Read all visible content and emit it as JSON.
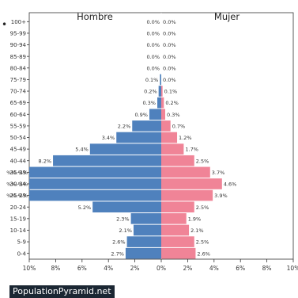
{
  "watermark": "PopulationPyramid.net",
  "bullet": "•",
  "chart_data": {
    "type": "bar",
    "orientation": "horizontal-pyramid",
    "categories": [
      "100+",
      "95-99",
      "90-94",
      "85-89",
      "80-84",
      "75-79",
      "70-74",
      "65-69",
      "60-64",
      "55-59",
      "50-54",
      "45-49",
      "40-44",
      "35-39",
      "30-34",
      "25-29",
      "20-24",
      "15-19",
      "10-14",
      "5-9",
      "0-4"
    ],
    "series": [
      {
        "name": "Hombre",
        "color": "#4f81bd",
        "values": [
          0.0,
          0.0,
          0.0,
          0.0,
          0.0,
          0.1,
          0.2,
          0.3,
          0.9,
          2.2,
          3.4,
          5.4,
          8.2,
          12.0,
          12.0,
          12.0,
          5.2,
          2.3,
          2.1,
          2.6,
          2.7
        ],
        "labels": [
          "0.0%",
          "0.0%",
          "0.0%",
          "0.0%",
          "0.0%",
          "0.1%",
          "0.2%",
          "0.3%",
          "0.9%",
          "2.2%",
          "3.4%",
          "5.4%",
          "8.2%",
          "",
          "",
          "",
          "5.2%",
          "2.3%",
          "2.1%",
          "2.6%",
          "2.7%"
        ]
      },
      {
        "name": "Mujer",
        "color": "#f08497",
        "values": [
          0.0,
          0.0,
          0.0,
          0.0,
          0.0,
          0.0,
          0.1,
          0.2,
          0.3,
          0.7,
          1.2,
          1.7,
          2.5,
          3.7,
          4.6,
          3.9,
          2.5,
          1.9,
          2.1,
          2.5,
          2.6
        ],
        "labels": [
          "0.0%",
          "0.0%",
          "0.0%",
          "0.0%",
          "0.0%",
          "0.0%",
          "0.1%",
          "0.2%",
          "0.3%",
          "0.7%",
          "1.2%",
          "1.7%",
          "2.5%",
          "3.7%",
          "4.6%",
          "3.9%",
          "2.5%",
          "1.9%",
          "2.1%",
          "2.5%",
          "2.6%"
        ]
      }
    ],
    "xlim": [
      -10,
      10
    ],
    "xticks": [
      -10,
      -8,
      -6,
      -4,
      -2,
      0,
      2,
      4,
      6,
      8,
      10
    ],
    "xtick_labels": [
      "10%",
      "8%",
      "6%",
      "4%",
      "2%",
      "0%",
      "2%",
      "4%",
      "6%",
      "8%",
      "10%"
    ],
    "overflow_left_labels": [
      "%%.%%",
      "%%.%%",
      "%%.%%"
    ],
    "male_title": "Hombre",
    "female_title": "Mujer",
    "grid": false
  }
}
